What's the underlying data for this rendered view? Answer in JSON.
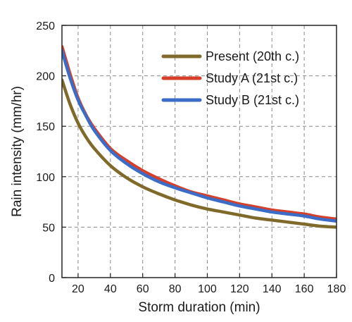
{
  "chart_data": {
    "type": "line",
    "title": "",
    "xlabel": "Storm duration (min)",
    "ylabel": "Rain intensity (mm/hr)",
    "xlim": [
      10,
      180
    ],
    "ylim": [
      0,
      250
    ],
    "xticks": [
      20,
      40,
      60,
      80,
      100,
      120,
      140,
      160,
      180
    ],
    "yticks": [
      0,
      50,
      100,
      150,
      200,
      250
    ],
    "grid": true,
    "legend_position": "top-right",
    "x": [
      10,
      15,
      20,
      25,
      30,
      40,
      50,
      60,
      70,
      80,
      90,
      100,
      110,
      120,
      130,
      140,
      150,
      160,
      170,
      180
    ],
    "series": [
      {
        "name": "Present (20th c.)",
        "color": "#7f6a2a",
        "values": [
          196,
          172,
          153,
          139,
          128,
          111,
          99,
          90,
          83,
          77,
          72,
          68,
          65,
          62,
          59,
          57,
          55,
          53,
          51,
          50
        ]
      },
      {
        "name": "Study A (21st c.)",
        "color": "#d6402a",
        "values": [
          229,
          202,
          178,
          161,
          148,
          128,
          116,
          106,
          98,
          91,
          85,
          81,
          77,
          73,
          70,
          67,
          65,
          63,
          60,
          58
        ]
      },
      {
        "name": "Study B (21st c.)",
        "color": "#3a6cc8",
        "values": [
          225,
          198,
          176,
          160,
          146,
          126,
          113,
          103,
          95,
          89,
          84,
          79,
          75,
          71,
          68,
          65,
          63,
          61,
          58,
          56
        ]
      }
    ]
  }
}
